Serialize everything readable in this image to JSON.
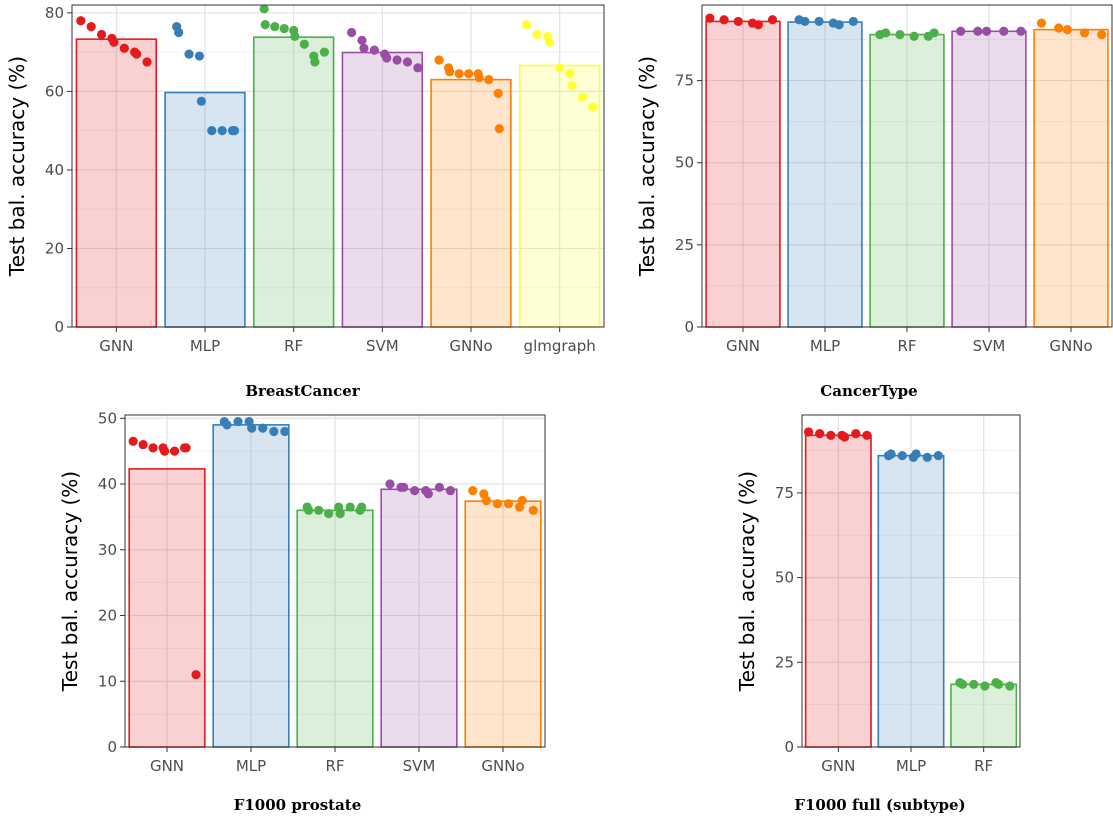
{
  "y_axis_label": "Test bal. accuracy (%)",
  "colors": {
    "GNN": "#e41a1c",
    "MLP": "#377eb8",
    "RF": "#4daf4a",
    "SVM": "#984ea3",
    "GNNo": "#ff7f00",
    "glmgraph": "#ffff33"
  },
  "chart_data": [
    {
      "type": "bar",
      "title": "BreastCancer",
      "ylabel": "Test bal. accuracy (%)",
      "ylim": [
        0,
        82
      ],
      "yticks": [
        0,
        20,
        40,
        60,
        80
      ],
      "grid": true,
      "categories": [
        "GNN",
        "MLP",
        "RF",
        "SVM",
        "GNNo",
        "glmgraph"
      ],
      "values": [
        73.3,
        59.7,
        73.8,
        69.9,
        63.0,
        66.6
      ],
      "points": [
        [
          78.0,
          76.5,
          74.5,
          73.5,
          72.5,
          71.0,
          70.0,
          69.5,
          67.5
        ],
        [
          76.5,
          75.0,
          69.5,
          69.0,
          57.5,
          50.0,
          50.0,
          50.0,
          50.0
        ],
        [
          81.0,
          77.0,
          76.5,
          76.0,
          75.5,
          74.0,
          72.0,
          69.0,
          67.5,
          70.0
        ],
        [
          75.0,
          73.0,
          71.0,
          70.5,
          69.5,
          68.5,
          68.0,
          67.5,
          66.0
        ],
        [
          68.0,
          66.0,
          65.0,
          64.5,
          64.5,
          64.5,
          63.5,
          63.0,
          59.5,
          50.5
        ],
        [
          77.0,
          74.5,
          74.0,
          72.5,
          66.0,
          64.5,
          61.5,
          58.5,
          56.0
        ]
      ]
    },
    {
      "type": "bar",
      "title": "CancerType",
      "ylabel": "Test bal. accuracy (%)",
      "ylim": [
        0,
        98
      ],
      "yticks": [
        0,
        25,
        50,
        75
      ],
      "grid": true,
      "categories": [
        "GNN",
        "MLP",
        "RF",
        "SVM",
        "GNNo"
      ],
      "values": [
        93.0,
        92.8,
        89.0,
        90.0,
        90.5
      ],
      "points": [
        [
          94.0,
          93.5,
          93.0,
          92.5,
          92.0,
          93.5
        ],
        [
          93.5,
          93.0,
          93.0,
          92.5,
          92.0,
          93.0
        ],
        [
          89.0,
          89.5,
          89.0,
          88.5,
          88.5,
          89.5
        ],
        [
          90.0,
          90.0,
          90.0,
          90.0,
          90.0
        ],
        [
          92.5,
          91.0,
          90.5,
          89.5,
          89.0
        ]
      ]
    },
    {
      "type": "bar",
      "title": "F1000 prostate",
      "ylabel": "Test bal. accuracy (%)",
      "ylim": [
        0,
        50.5
      ],
      "yticks": [
        0,
        10,
        20,
        30,
        40,
        50
      ],
      "grid": true,
      "categories": [
        "GNN",
        "MLP",
        "RF",
        "SVM",
        "GNNo"
      ],
      "values": [
        42.3,
        49.0,
        36.0,
        39.2,
        37.4
      ],
      "points": [
        [
          46.5,
          46.0,
          45.5,
          45.5,
          45.0,
          45.0,
          45.5,
          45.5,
          11.0
        ],
        [
          49.5,
          49.0,
          49.5,
          49.5,
          48.5,
          48.5,
          48.0,
          48.0
        ],
        [
          36.5,
          36.0,
          36.0,
          35.5,
          36.5,
          35.5,
          36.5,
          36.0,
          36.5
        ],
        [
          40.0,
          39.5,
          39.5,
          39.0,
          39.0,
          38.5,
          39.5,
          39.0
        ],
        [
          39.0,
          38.5,
          37.5,
          37.0,
          37.0,
          36.5,
          37.5,
          36.0
        ]
      ]
    },
    {
      "type": "bar",
      "title": "F1000 full (subtype)",
      "ylabel": "Test bal. accuracy (%)",
      "ylim": [
        0,
        98
      ],
      "yticks": [
        0,
        25,
        50,
        75
      ],
      "grid": true,
      "categories": [
        "GNN",
        "MLP",
        "RF"
      ],
      "values": [
        92.0,
        86.0,
        18.5
      ],
      "points": [
        [
          93.0,
          92.5,
          92.0,
          92.0,
          91.5,
          92.5,
          92.0
        ],
        [
          86.0,
          86.5,
          86.0,
          85.5,
          86.5,
          85.5,
          86.0
        ],
        [
          19.0,
          18.5,
          18.5,
          18.0,
          19.0,
          18.5,
          18.0
        ]
      ]
    }
  ]
}
